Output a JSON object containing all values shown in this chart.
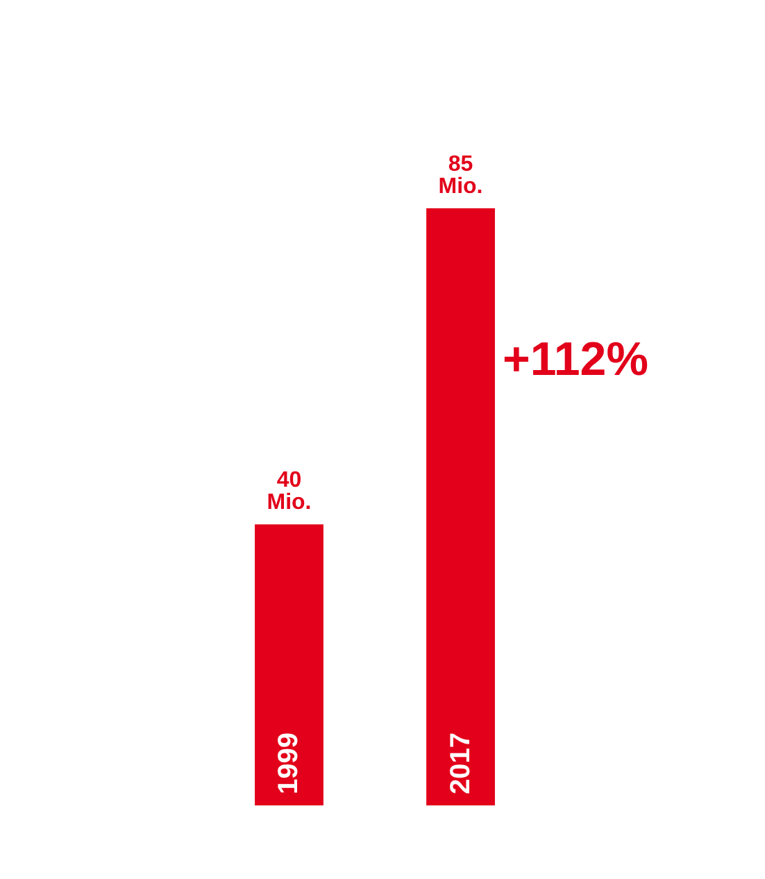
{
  "chart_data": {
    "type": "bar",
    "categories": [
      "1999",
      "2017"
    ],
    "values": [
      40,
      85
    ],
    "value_labels": [
      "40 Mio.",
      "85 Mio."
    ],
    "color": "#e2001a",
    "annotations": [
      "+112%"
    ]
  }
}
